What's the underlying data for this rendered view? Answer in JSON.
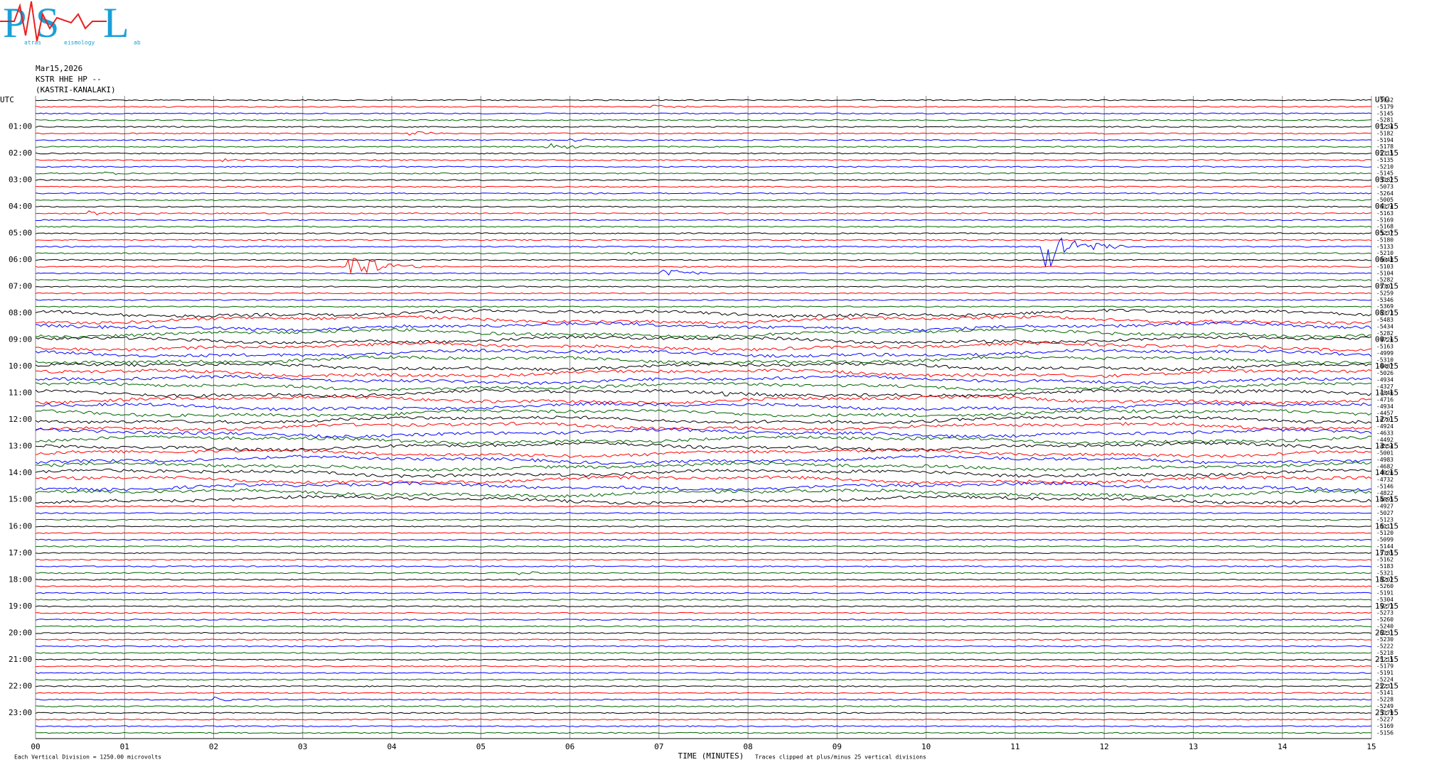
{
  "logo": {
    "letters": [
      "P",
      "S",
      "L"
    ],
    "words": [
      "atras",
      "eismology",
      "ab"
    ]
  },
  "header": {
    "date": "Mar15,2026",
    "station": "KSTR HHE HP --",
    "location": "(KASTRI-KANALAKI)"
  },
  "left_labels": [
    "UTC",
    "01:00",
    "02:00",
    "03:00",
    "04:00",
    "05:00",
    "06:00",
    "07:00",
    "08:00",
    "09:00",
    "10:00",
    "11:00",
    "12:00",
    "13:00",
    "14:00",
    "15:00",
    "16:00",
    "17:00",
    "18:00",
    "19:00",
    "20:00",
    "21:00",
    "22:00",
    "23:00"
  ],
  "right_labels": [
    "UTC",
    "01:15",
    "02:15",
    "03:15",
    "04:15",
    "05:15",
    "06:15",
    "07:15",
    "08:15",
    "09:15",
    "10:15",
    "11:15",
    "12:15",
    "13:15",
    "14:15",
    "15:15",
    "16:15",
    "17:15",
    "18:15",
    "19:15",
    "20:15",
    "21:15",
    "22:15",
    "23:15"
  ],
  "trace_values": [
    "-5042",
    "-5179",
    "-5145",
    "-5281",
    "-5234",
    "-5182",
    "-5194",
    "-5178",
    "-5115",
    "-5135",
    "-5210",
    "-5145",
    "-5182",
    "-5073",
    "-5264",
    "-5005",
    "-5174",
    "-5163",
    "-5169",
    "-5168",
    "-5237",
    "-5180",
    "-5133",
    "-5210",
    "-5048",
    "-5103",
    "-5104",
    "-5282",
    "-5301",
    "-5259",
    "-5346",
    "-5369",
    "-5373",
    "-5483",
    "-5434",
    "-5282",
    "-4726",
    "-5163",
    "-4999",
    "-5310",
    "-4487",
    "-5026",
    "-4934",
    "-4327",
    "-4846",
    "-4716",
    "-4934",
    "-4457",
    "-4701",
    "-4924",
    "-4633",
    "-4492",
    "-4554",
    "-5001",
    "-4983",
    "-4682",
    "-4926",
    "-4732",
    "-5146",
    "-4822",
    "-4895",
    "-4927",
    "-5027",
    "-5123",
    "-5111",
    "-5120",
    "-5099",
    "-5144",
    "-5185",
    "-5162",
    "-5183",
    "-5321",
    "-5202",
    "-5260",
    "-5191",
    "-5304",
    "-5273",
    "-5273",
    "-5260",
    "-5240",
    "-5231",
    "-5230",
    "-5222",
    "-5218",
    "-5215",
    "-5179",
    "-5191",
    "-5224",
    "-5231",
    "-5141",
    "-5228",
    "-5249",
    "-5179",
    "-5227",
    "-5169",
    "-5156"
  ],
  "x_ticks": [
    "00",
    "01",
    "02",
    "03",
    "04",
    "05",
    "06",
    "07",
    "08",
    "09",
    "10",
    "11",
    "12",
    "13",
    "14",
    "15"
  ],
  "x_axis_title": "TIME (MINUTES)",
  "footnote_left": "Each Vertical Division = 1250.00 microvolts",
  "footnote_right": "Traces clipped at plus/minus 25 vertical divisions"
}
